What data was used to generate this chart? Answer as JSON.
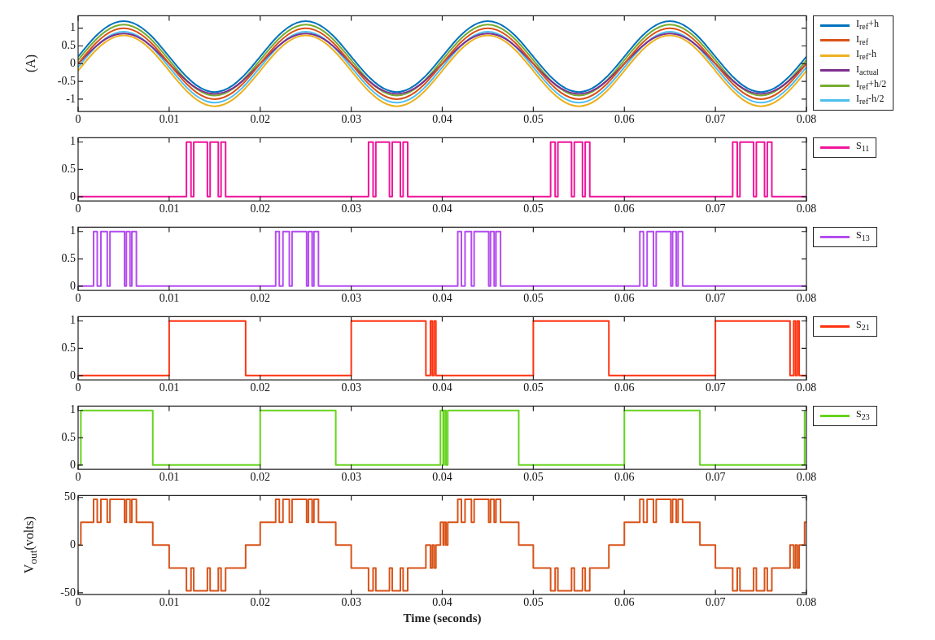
{
  "chart_data": [
    {
      "type": "line",
      "ylabel": "(A)",
      "legend": "right",
      "marker": "none",
      "xlim": [
        0,
        0.08
      ],
      "xticks": [
        0,
        0.01,
        0.02,
        0.03,
        0.04,
        0.05,
        0.06,
        0.07,
        0.08
      ],
      "ylim": [
        -1.35,
        1.35
      ],
      "yticks": [
        -1,
        -0.5,
        0,
        0.5,
        1
      ],
      "x": [
        0,
        0.001,
        0.002,
        0.003,
        0.004,
        0.005,
        0.006,
        0.007,
        0.008,
        0.009,
        0.01,
        0.011,
        0.012,
        0.013,
        0.014,
        0.015,
        0.016,
        0.017,
        0.018,
        0.019,
        0.02,
        0.021,
        0.022,
        0.023,
        0.024,
        0.025,
        0.026,
        0.027,
        0.028,
        0.029,
        0.03,
        0.031,
        0.032,
        0.033,
        0.034,
        0.035,
        0.036,
        0.037,
        0.038,
        0.039,
        0.04,
        0.041,
        0.042,
        0.043,
        0.044,
        0.045,
        0.046,
        0.047,
        0.048,
        0.049,
        0.05,
        0.051,
        0.052,
        0.053,
        0.054,
        0.055,
        0.056,
        0.057,
        0.058,
        0.059,
        0.06,
        0.061,
        0.062,
        0.063,
        0.064,
        0.065,
        0.066,
        0.067,
        0.068,
        0.069,
        0.07,
        0.071,
        0.072,
        0.073,
        0.074,
        0.075,
        0.076,
        0.077,
        0.078,
        0.079,
        0.08
      ],
      "series": [
        {
          "name": "I$_{ref}$+h",
          "color": "#0072bd",
          "values": [
            0.2,
            0.51,
            0.79,
            1.01,
            1.15,
            1.2,
            1.15,
            1.01,
            0.79,
            0.51,
            0.2,
            -0.11,
            -0.39,
            -0.61,
            -0.75,
            -0.8,
            -0.75,
            -0.61,
            -0.39,
            -0.11,
            0.2,
            0.51,
            0.79,
            1.01,
            1.15,
            1.2,
            1.15,
            1.01,
            0.79,
            0.51,
            0.2,
            -0.11,
            -0.39,
            -0.61,
            -0.75,
            -0.8,
            -0.75,
            -0.61,
            -0.39,
            -0.11,
            0.2,
            0.51,
            0.79,
            1.01,
            1.15,
            1.2,
            1.15,
            1.01,
            0.79,
            0.51,
            0.2,
            -0.11,
            -0.39,
            -0.61,
            -0.75,
            -0.8,
            -0.75,
            -0.61,
            -0.39,
            -0.11,
            0.2,
            0.51,
            0.79,
            1.01,
            1.15,
            1.2,
            1.15,
            1.01,
            0.79,
            0.51,
            0.2,
            -0.11,
            -0.39,
            -0.61,
            -0.75,
            -0.8,
            -0.75,
            -0.61,
            -0.39,
            -0.11,
            0.2
          ]
        },
        {
          "name": "I$_{ref}$",
          "color": "#d95319",
          "values": [
            0,
            0.31,
            0.59,
            0.81,
            0.95,
            1,
            0.95,
            0.81,
            0.59,
            0.31,
            0,
            -0.31,
            -0.59,
            -0.81,
            -0.95,
            -1,
            -0.95,
            -0.81,
            -0.59,
            -0.31,
            0,
            0.31,
            0.59,
            0.81,
            0.95,
            1,
            0.95,
            0.81,
            0.59,
            0.31,
            0,
            -0.31,
            -0.59,
            -0.81,
            -0.95,
            -1,
            -0.95,
            -0.81,
            -0.59,
            -0.31,
            0,
            0.31,
            0.59,
            0.81,
            0.95,
            1,
            0.95,
            0.81,
            0.59,
            0.31,
            0,
            -0.31,
            -0.59,
            -0.81,
            -0.95,
            -1,
            -0.95,
            -0.81,
            -0.59,
            -0.31,
            0,
            0.31,
            0.59,
            0.81,
            0.95,
            1,
            0.95,
            0.81,
            0.59,
            0.31,
            0,
            -0.31,
            -0.59,
            -0.81,
            -0.95,
            -1,
            -0.95,
            -0.81,
            -0.59,
            -0.31,
            0
          ]
        },
        {
          "name": "I$_{ref}$-h",
          "color": "#edb120",
          "values": [
            -0.2,
            0.11,
            0.39,
            0.61,
            0.75,
            0.8,
            0.75,
            0.61,
            0.39,
            0.11,
            -0.2,
            -0.51,
            -0.79,
            -1.01,
            -1.15,
            -1.2,
            -1.15,
            -1.01,
            -0.79,
            -0.51,
            -0.2,
            0.11,
            0.39,
            0.61,
            0.75,
            0.8,
            0.75,
            0.61,
            0.39,
            0.11,
            -0.2,
            -0.51,
            -0.79,
            -1.01,
            -1.15,
            -1.2,
            -1.15,
            -1.01,
            -0.79,
            -0.51,
            -0.2,
            0.11,
            0.39,
            0.61,
            0.75,
            0.8,
            0.75,
            0.61,
            0.39,
            0.11,
            -0.2,
            -0.51,
            -0.79,
            -1.01,
            -1.15,
            -1.2,
            -1.15,
            -1.01,
            -0.79,
            -0.51,
            -0.2,
            0.11,
            0.39,
            0.61,
            0.75,
            0.8,
            0.75,
            0.61,
            0.39,
            0.11,
            -0.2,
            -0.51,
            -0.79,
            -1.01,
            -1.15,
            -1.2,
            -1.15,
            -1.01,
            -0.79,
            -0.51,
            -0.2
          ]
        },
        {
          "name": "I$_{actual}$",
          "color": "#7e2f8e",
          "values": [
            0,
            0.26,
            0.5,
            0.69,
            0.81,
            0.85,
            0.81,
            0.69,
            0.5,
            0.26,
            0,
            -0.26,
            -0.5,
            -0.69,
            -0.81,
            -0.85,
            -0.81,
            -0.69,
            -0.5,
            -0.26,
            0,
            0.26,
            0.5,
            0.69,
            0.81,
            0.85,
            0.81,
            0.69,
            0.5,
            0.26,
            0,
            -0.26,
            -0.5,
            -0.69,
            -0.81,
            -0.85,
            -0.81,
            -0.69,
            -0.5,
            -0.26,
            0,
            0.26,
            0.5,
            0.69,
            0.81,
            0.85,
            0.81,
            0.69,
            0.5,
            0.26,
            0,
            -0.26,
            -0.5,
            -0.69,
            -0.81,
            -0.85,
            -0.81,
            -0.69,
            -0.5,
            -0.26,
            0,
            0.26,
            0.5,
            0.69,
            0.81,
            0.85,
            0.81,
            0.69,
            0.5,
            0.26,
            0,
            -0.26,
            -0.5,
            -0.69,
            -0.81,
            -0.85,
            -0.81,
            -0.69,
            -0.5,
            -0.26,
            0
          ]
        },
        {
          "name": "I$_{ref}$+h/2",
          "color": "#77ac30",
          "values": [
            0.1,
            0.41,
            0.69,
            0.91,
            1.05,
            1.1,
            1.05,
            0.91,
            0.69,
            0.41,
            0.1,
            -0.21,
            -0.49,
            -0.71,
            -0.85,
            -0.9,
            -0.85,
            -0.71,
            -0.49,
            -0.21,
            0.1,
            0.41,
            0.69,
            0.91,
            1.05,
            1.1,
            1.05,
            0.91,
            0.69,
            0.41,
            0.1,
            -0.21,
            -0.49,
            -0.71,
            -0.85,
            -0.9,
            -0.85,
            -0.71,
            -0.49,
            -0.21,
            0.1,
            0.41,
            0.69,
            0.91,
            1.05,
            1.1,
            1.05,
            0.91,
            0.69,
            0.41,
            0.1,
            -0.21,
            -0.49,
            -0.71,
            -0.85,
            -0.9,
            -0.85,
            -0.71,
            -0.49,
            -0.21,
            0.1,
            0.41,
            0.69,
            0.91,
            1.05,
            1.1,
            1.05,
            0.91,
            0.69,
            0.41,
            0.1,
            -0.21,
            -0.49,
            -0.71,
            -0.85,
            -0.9,
            -0.85,
            -0.71,
            -0.49,
            -0.21,
            0.1
          ]
        },
        {
          "name": "I$_{ref}$-h/2",
          "color": "#4dbeee",
          "values": [
            -0.1,
            0.21,
            0.49,
            0.71,
            0.85,
            0.9,
            0.85,
            0.71,
            0.49,
            0.21,
            -0.1,
            -0.41,
            -0.69,
            -0.91,
            -1.05,
            -1.1,
            -1.05,
            -0.91,
            -0.69,
            -0.41,
            -0.1,
            0.21,
            0.49,
            0.71,
            0.85,
            0.9,
            0.85,
            0.71,
            0.49,
            0.21,
            -0.1,
            -0.41,
            -0.69,
            -0.91,
            -1.05,
            -1.1,
            -1.05,
            -0.91,
            -0.69,
            -0.41,
            -0.1,
            0.21,
            0.49,
            0.71,
            0.85,
            0.9,
            0.85,
            0.71,
            0.49,
            0.21,
            -0.1,
            -0.41,
            -0.69,
            -0.91,
            -1.05,
            -1.1,
            -1.05,
            -0.91,
            -0.69,
            -0.41,
            -0.1,
            0.21,
            0.49,
            0.71,
            0.85,
            0.9,
            0.85,
            0.71,
            0.49,
            0.21,
            -0.1,
            -0.41,
            -0.69,
            -0.91,
            -1.05,
            -1.1,
            -1.05,
            -0.91,
            -0.69,
            -0.41,
            -0.1
          ]
        }
      ]
    },
    {
      "type": "step",
      "legend": "right",
      "marker": "none",
      "xlim": [
        0,
        0.08
      ],
      "xticks": [
        0,
        0.01,
        0.02,
        0.03,
        0.04,
        0.05,
        0.06,
        0.07,
        0.08
      ],
      "ylim": [
        -0.08,
        1.08
      ],
      "yticks": [
        0,
        0.5,
        1
      ],
      "series": [
        {
          "name": "S$_{11}$",
          "color": "#f0149a",
          "x": [
            0,
            0.0119,
            0.0124,
            0.0127,
            0.0142,
            0.0145,
            0.0154,
            0.0157,
            0.0162,
            0.0319,
            0.0324,
            0.0327,
            0.0342,
            0.0345,
            0.0354,
            0.0357,
            0.0362,
            0.0519,
            0.0524,
            0.0527,
            0.0542,
            0.0545,
            0.0554,
            0.0557,
            0.0562,
            0.0719,
            0.0724,
            0.0727,
            0.0742,
            0.0745,
            0.0754,
            0.0757,
            0.0762,
            0.08
          ],
          "values": [
            0,
            1,
            0,
            1,
            0,
            1,
            0,
            1,
            0,
            1,
            0,
            1,
            0,
            1,
            0,
            1,
            0,
            1,
            0,
            1,
            0,
            1,
            0,
            1,
            0,
            1,
            0,
            1,
            0,
            1,
            0,
            1,
            0,
            0
          ]
        }
      ]
    },
    {
      "type": "step",
      "legend": "right",
      "marker": "none",
      "xlim": [
        0,
        0.08
      ],
      "xticks": [
        0,
        0.01,
        0.02,
        0.03,
        0.04,
        0.05,
        0.06,
        0.07,
        0.08
      ],
      "ylim": [
        -0.08,
        1.08
      ],
      "yticks": [
        0,
        0.5,
        1
      ],
      "series": [
        {
          "name": "S$_{13}$",
          "color": "#b44cf0",
          "x": [
            0,
            0.0017,
            0.0021,
            0.0025,
            0.0032,
            0.0035,
            0.0051,
            0.0053,
            0.0057,
            0.0059,
            0.0064,
            0.0217,
            0.0221,
            0.0225,
            0.0232,
            0.0235,
            0.0251,
            0.0253,
            0.0257,
            0.0259,
            0.0264,
            0.0417,
            0.0421,
            0.0425,
            0.0432,
            0.0435,
            0.0451,
            0.0453,
            0.0457,
            0.0459,
            0.0464,
            0.0617,
            0.0621,
            0.0625,
            0.0632,
            0.0635,
            0.0651,
            0.0653,
            0.0657,
            0.0659,
            0.0664,
            0.08
          ],
          "values": [
            0,
            1,
            0,
            1,
            0,
            1,
            0,
            1,
            0,
            1,
            0,
            1,
            0,
            1,
            0,
            1,
            0,
            1,
            0,
            1,
            0,
            1,
            0,
            1,
            0,
            1,
            0,
            1,
            0,
            1,
            0,
            1,
            0,
            1,
            0,
            1,
            0,
            1,
            0,
            1,
            0,
            0
          ]
        }
      ]
    },
    {
      "type": "step",
      "legend": "right",
      "marker": "none",
      "xlim": [
        0,
        0.08
      ],
      "xticks": [
        0,
        0.01,
        0.02,
        0.03,
        0.04,
        0.05,
        0.06,
        0.07,
        0.08
      ],
      "ylim": [
        -0.08,
        1.08
      ],
      "yticks": [
        0,
        0.5,
        1
      ],
      "series": [
        {
          "name": "S$_{21}$",
          "color": "#ff3311",
          "x": [
            0,
            0.01,
            0.0184,
            0.03,
            0.0382,
            0.0387,
            0.0389,
            0.0391,
            0.0393,
            0.05,
            0.0583,
            0.07,
            0.0782,
            0.0786,
            0.0788,
            0.079,
            0.0792,
            0.08
          ],
          "values": [
            0,
            1,
            0,
            1,
            0,
            1,
            0,
            1,
            0,
            1,
            0,
            1,
            0,
            1,
            0,
            1,
            0,
            0
          ]
        }
      ]
    },
    {
      "type": "step",
      "legend": "right",
      "marker": "none",
      "xlim": [
        0,
        0.08
      ],
      "xticks": [
        0,
        0.01,
        0.02,
        0.03,
        0.04,
        0.05,
        0.06,
        0.07,
        0.08
      ],
      "ylim": [
        -0.08,
        1.08
      ],
      "yticks": [
        0,
        0.5,
        1
      ],
      "series": [
        {
          "name": "S$_{23}$",
          "color": "#66d41e",
          "x": [
            0,
            0.0003,
            0.0082,
            0.02,
            0.0283,
            0.0398,
            0.0401,
            0.0402,
            0.0404,
            0.0406,
            0.0484,
            0.06,
            0.0683,
            0.0798
          ],
          "values": [
            0,
            1,
            0,
            1,
            0,
            1,
            0,
            1,
            0,
            1,
            0,
            1,
            0,
            1
          ]
        }
      ]
    },
    {
      "type": "step",
      "ylabel": "V$_{out}$(volts)",
      "xlabel": "Time (seconds)",
      "marker": "none",
      "xlim": [
        0,
        0.08
      ],
      "xticks": [
        0,
        0.01,
        0.02,
        0.03,
        0.04,
        0.05,
        0.06,
        0.07,
        0.08
      ],
      "ylim": [
        -52,
        52
      ],
      "yticks": [
        -50,
        0,
        50
      ],
      "series": [
        {
          "color": "#d95319",
          "x": [
            0,
            0.0003,
            0.0017,
            0.0021,
            0.0025,
            0.0032,
            0.0035,
            0.0051,
            0.0053,
            0.0057,
            0.0059,
            0.0064,
            0.0082,
            0.01,
            0.0119,
            0.0124,
            0.0127,
            0.0142,
            0.0145,
            0.0154,
            0.0157,
            0.0162,
            0.0184,
            0.02,
            0.0217,
            0.0221,
            0.0225,
            0.0232,
            0.0235,
            0.0251,
            0.0253,
            0.0257,
            0.0259,
            0.0264,
            0.0283,
            0.03,
            0.0319,
            0.0324,
            0.0327,
            0.0342,
            0.0345,
            0.0354,
            0.0357,
            0.0362,
            0.0382,
            0.0387,
            0.0389,
            0.0391,
            0.0393,
            0.0398,
            0.0401,
            0.0402,
            0.0404,
            0.0406,
            0.0417,
            0.0421,
            0.0425,
            0.0432,
            0.0435,
            0.0451,
            0.0453,
            0.0457,
            0.0459,
            0.0464,
            0.0484,
            0.05,
            0.0519,
            0.0524,
            0.0527,
            0.0542,
            0.0545,
            0.0554,
            0.0557,
            0.0562,
            0.0583,
            0.06,
            0.0617,
            0.0621,
            0.0625,
            0.0632,
            0.0635,
            0.0651,
            0.0653,
            0.0657,
            0.0659,
            0.0664,
            0.0683,
            0.07,
            0.0719,
            0.0724,
            0.0727,
            0.0742,
            0.0745,
            0.0754,
            0.0757,
            0.0762,
            0.0782,
            0.0786,
            0.0788,
            0.079,
            0.0792,
            0.0798,
            0.08
          ],
          "values": [
            0,
            24,
            48,
            24,
            48,
            24,
            48,
            24,
            48,
            24,
            48,
            24,
            0,
            -24,
            -48,
            -24,
            -48,
            -24,
            -48,
            -24,
            -48,
            -24,
            0,
            24,
            48,
            24,
            48,
            24,
            48,
            24,
            48,
            24,
            48,
            24,
            0,
            -24,
            -48,
            -24,
            -48,
            -24,
            -48,
            -24,
            -48,
            -24,
            0,
            -24,
            0,
            -24,
            0,
            24,
            0,
            24,
            0,
            24,
            48,
            24,
            48,
            24,
            48,
            24,
            48,
            24,
            48,
            24,
            0,
            -24,
            -48,
            -24,
            -48,
            -24,
            -48,
            -24,
            -48,
            -24,
            0,
            24,
            48,
            24,
            48,
            24,
            48,
            24,
            48,
            24,
            48,
            24,
            0,
            -24,
            -48,
            -24,
            -48,
            -24,
            -48,
            -24,
            -48,
            -24,
            0,
            -24,
            0,
            -24,
            0,
            24,
            24
          ]
        }
      ]
    }
  ]
}
